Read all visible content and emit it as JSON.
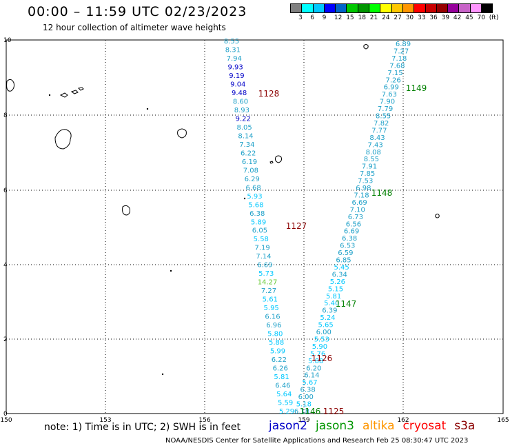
{
  "title": "00:00 – 11:59 UTC 02/23/2023",
  "subtitle": "12 hour collection of altimeter wave heights",
  "color_scale": {
    "colors": [
      "#808080",
      "#00ffff",
      "#00c8ff",
      "#0000ff",
      "#0064c8",
      "#00c800",
      "#009600",
      "#00ff00",
      "#ffff00",
      "#ffc800",
      "#ff9600",
      "#ff0000",
      "#c80000",
      "#960000",
      "#96009b",
      "#c864c8",
      "#ff96ff",
      "#000000"
    ],
    "labels": [
      "3",
      "6",
      "9",
      "12",
      "15",
      "18",
      "21",
      "24",
      "27",
      "30",
      "33",
      "36",
      "39",
      "42",
      "45",
      "70",
      "(ft)"
    ]
  },
  "axes": {
    "x_ticks": [
      "150",
      "153",
      "156",
      "159",
      "162",
      "165"
    ],
    "y_ticks": [
      "0",
      "2",
      "4",
      "6",
      "8",
      "10"
    ]
  },
  "tracks": {
    "left": [
      {
        "v": "8.55",
        "c": "#1ea0c8"
      },
      {
        "v": "8.31",
        "c": "#1ea0c8"
      },
      {
        "v": "7.94",
        "c": "#1ea0c8"
      },
      {
        "v": "9.93",
        "c": "#0000c8"
      },
      {
        "v": "9.19",
        "c": "#0000c8"
      },
      {
        "v": "9.04",
        "c": "#0000c8"
      },
      {
        "v": "9.48",
        "c": "#0000c8"
      },
      {
        "v": "8.60",
        "c": "#1ea0c8"
      },
      {
        "v": "8.93",
        "c": "#1ea0c8"
      },
      {
        "v": "9.22",
        "c": "#0000c8"
      },
      {
        "v": "8.05",
        "c": "#1ea0c8"
      },
      {
        "v": "8.14",
        "c": "#1ea0c8"
      },
      {
        "v": "7.34",
        "c": "#1ea0c8"
      },
      {
        "v": "6.22",
        "c": "#1ea0c8"
      },
      {
        "v": "6.19",
        "c": "#1ea0c8"
      },
      {
        "v": "7.08",
        "c": "#1ea0c8"
      },
      {
        "v": "6.29",
        "c": "#1ea0c8"
      },
      {
        "v": "6.68",
        "c": "#1ea0c8"
      },
      {
        "v": "5.93",
        "c": "#00c8ff"
      },
      {
        "v": "5.68",
        "c": "#00c8ff"
      },
      {
        "v": "6.38",
        "c": "#1ea0c8"
      },
      {
        "v": "5.89",
        "c": "#00c8ff"
      },
      {
        "v": "6.05",
        "c": "#1ea0c8"
      },
      {
        "v": "5.58",
        "c": "#00c8ff"
      },
      {
        "v": "7.19",
        "c": "#1ea0c8"
      },
      {
        "v": "7.14",
        "c": "#1ea0c8"
      },
      {
        "v": "6.69",
        "c": "#1ea0c8"
      },
      {
        "v": "5.73",
        "c": "#00c8ff"
      },
      {
        "v": "14.27",
        "c": "#64c832"
      },
      {
        "v": "7.27",
        "c": "#1ea0c8"
      },
      {
        "v": "5.61",
        "c": "#00c8ff"
      },
      {
        "v": "5.95",
        "c": "#00c8ff"
      },
      {
        "v": "6.16",
        "c": "#1ea0c8"
      },
      {
        "v": "6.96",
        "c": "#1ea0c8"
      },
      {
        "v": "5.80",
        "c": "#00c8ff"
      },
      {
        "v": "5.88",
        "c": "#00c8ff"
      },
      {
        "v": "5.99",
        "c": "#00c8ff"
      },
      {
        "v": "6.22",
        "c": "#1ea0c8"
      },
      {
        "v": "6.26",
        "c": "#1ea0c8"
      },
      {
        "v": "5.81",
        "c": "#00c8ff"
      },
      {
        "v": "6.46",
        "c": "#1ea0c8"
      },
      {
        "v": "5.64",
        "c": "#00c8ff"
      },
      {
        "v": "5.59",
        "c": "#00c8ff"
      },
      {
        "v": "5.29",
        "c": "#00c8ff"
      }
    ],
    "right": [
      {
        "v": "6.89",
        "c": "#1ea0c8"
      },
      {
        "v": "7.27",
        "c": "#1ea0c8"
      },
      {
        "v": "7.18",
        "c": "#1ea0c8"
      },
      {
        "v": "7.68",
        "c": "#1ea0c8"
      },
      {
        "v": "7.15",
        "c": "#1ea0c8"
      },
      {
        "v": "7.26",
        "c": "#1ea0c8"
      },
      {
        "v": "6.99",
        "c": "#1ea0c8"
      },
      {
        "v": "7.63",
        "c": "#1ea0c8"
      },
      {
        "v": "7.90",
        "c": "#1ea0c8"
      },
      {
        "v": "7.79",
        "c": "#1ea0c8"
      },
      {
        "v": "8.55",
        "c": "#1ea0c8"
      },
      {
        "v": "7.82",
        "c": "#1ea0c8"
      },
      {
        "v": "7.77",
        "c": "#1ea0c8"
      },
      {
        "v": "8.43",
        "c": "#1ea0c8"
      },
      {
        "v": "7.43",
        "c": "#1ea0c8"
      },
      {
        "v": "8.08",
        "c": "#1ea0c8"
      },
      {
        "v": "8.55",
        "c": "#1ea0c8"
      },
      {
        "v": "7.91",
        "c": "#1ea0c8"
      },
      {
        "v": "7.85",
        "c": "#1ea0c8"
      },
      {
        "v": "7.53",
        "c": "#1ea0c8"
      },
      {
        "v": "6.98",
        "c": "#1ea0c8"
      },
      {
        "v": "7.18",
        "c": "#1ea0c8"
      },
      {
        "v": "6.69",
        "c": "#1ea0c8"
      },
      {
        "v": "7.10",
        "c": "#1ea0c8"
      },
      {
        "v": "6.73",
        "c": "#1ea0c8"
      },
      {
        "v": "6.56",
        "c": "#1ea0c8"
      },
      {
        "v": "6.69",
        "c": "#1ea0c8"
      },
      {
        "v": "6.38",
        "c": "#1ea0c8"
      },
      {
        "v": "6.53",
        "c": "#1ea0c8"
      },
      {
        "v": "6.59",
        "c": "#1ea0c8"
      },
      {
        "v": "6.85",
        "c": "#1ea0c8"
      },
      {
        "v": "5.45",
        "c": "#00c8ff"
      },
      {
        "v": "6.34",
        "c": "#1ea0c8"
      },
      {
        "v": "5.26",
        "c": "#00c8ff"
      },
      {
        "v": "5.15",
        "c": "#00c8ff"
      },
      {
        "v": "5.81",
        "c": "#00c8ff"
      },
      {
        "v": "5.40",
        "c": "#00c8ff"
      },
      {
        "v": "6.39",
        "c": "#1ea0c8"
      },
      {
        "v": "5.24",
        "c": "#00c8ff"
      },
      {
        "v": "5.65",
        "c": "#00c8ff"
      },
      {
        "v": "6.00",
        "c": "#1ea0c8"
      },
      {
        "v": "5.53",
        "c": "#00c8ff"
      },
      {
        "v": "5.90",
        "c": "#00c8ff"
      },
      {
        "v": "5.76",
        "c": "#00c8ff"
      },
      {
        "v": "5.88",
        "c": "#00c8ff"
      },
      {
        "v": "6.20",
        "c": "#1ea0c8"
      },
      {
        "v": "6.14",
        "c": "#1ea0c8"
      },
      {
        "v": "5.67",
        "c": "#00c8ff"
      },
      {
        "v": "6.38",
        "c": "#1ea0c8"
      },
      {
        "v": "6.00",
        "c": "#1ea0c8"
      },
      {
        "v": "5.18",
        "c": "#00c8ff"
      },
      {
        "v": "6.18",
        "c": "#1ea0c8"
      }
    ]
  },
  "pass_labels": [
    {
      "text": "1128",
      "c": "#8b0000"
    },
    {
      "text": "1127",
      "c": "#8b0000"
    },
    {
      "text": "1126",
      "c": "#8b0000"
    },
    {
      "text": "1125",
      "c": "#8b0000"
    },
    {
      "text": "1149",
      "c": "#008000"
    },
    {
      "text": "1148",
      "c": "#008000"
    },
    {
      "text": "1147",
      "c": "#008000"
    },
    {
      "text": "1146",
      "c": "#008000"
    }
  ],
  "footer": {
    "note": "note: 1) Time is in UTC; 2) SWH is in feet",
    "satellites": [
      {
        "name": "jason2",
        "color": "#0000c8"
      },
      {
        "name": "jason3",
        "color": "#009600"
      },
      {
        "name": "altika",
        "color": "#ff9600"
      },
      {
        "name": "cryosat",
        "color": "#ff0000"
      },
      {
        "name": "s3a",
        "color": "#8b0000"
      }
    ],
    "credit": "NOAA/NESDIS Center for Satellite Applications and Research    Feb 25 08:30:47 UTC 2023"
  }
}
